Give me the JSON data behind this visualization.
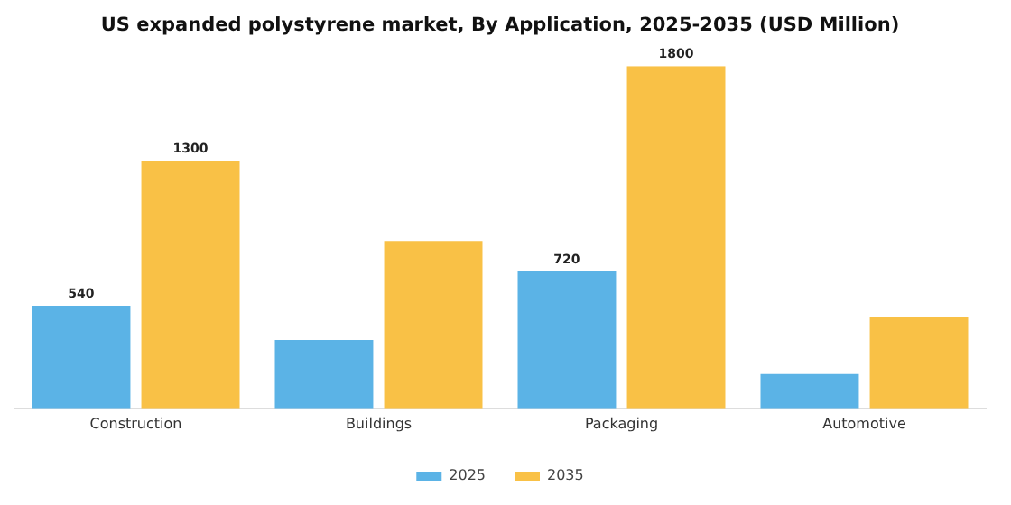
{
  "chart_data": {
    "type": "bar",
    "title": "US expanded polystyrene market, By Application, 2025-2035 (USD Million)",
    "categories": [
      "Construction",
      "Buildings",
      "Packaging",
      "Automotive"
    ],
    "series": [
      {
        "name": "2025",
        "color": "#5bb3e6",
        "values": [
          540,
          360,
          720,
          180
        ],
        "value_labels": [
          "540",
          null,
          "720",
          null
        ]
      },
      {
        "name": "2035",
        "color": "#f9c146",
        "values": [
          1300,
          880,
          1800,
          480
        ],
        "value_labels": [
          "1300",
          null,
          "1800",
          null
        ]
      }
    ],
    "grid": false,
    "legend": "bottom",
    "tick_labels": "x"
  }
}
